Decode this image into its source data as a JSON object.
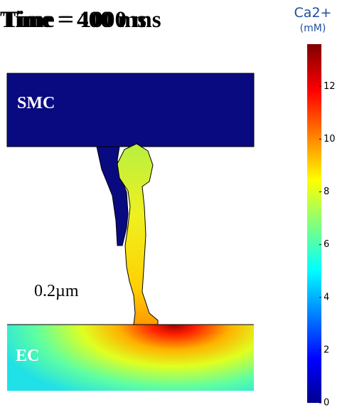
{
  "titles": [
    "Time = 400 ms",
    "Time = 1000 ms"
  ],
  "regions": {
    "top": "SMC",
    "bottom": "EC"
  },
  "scale_bar": "0.2µm",
  "colorbar": {
    "label": "Ca2+",
    "unit": "(mM)",
    "lim": [
      0,
      13.6
    ],
    "ticks": [
      0,
      2,
      4,
      6,
      8,
      10,
      12
    ]
  }
}
